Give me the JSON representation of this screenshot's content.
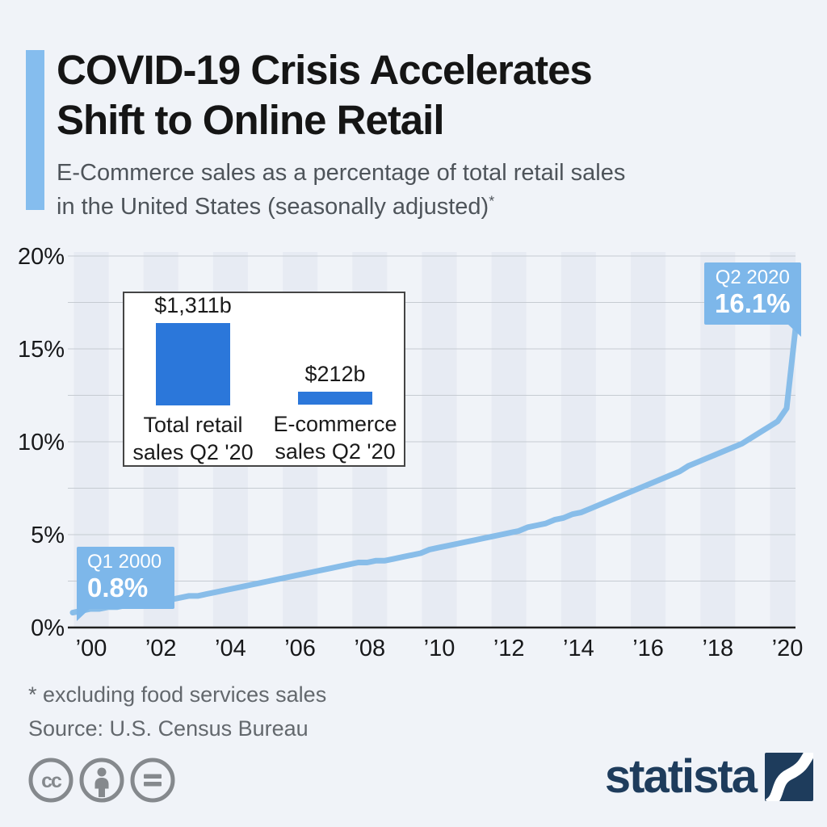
{
  "header": {
    "title_lines": [
      "COVID-19 Crisis Accelerates",
      "Shift to Online Retail"
    ],
    "subtitle_lines": [
      "E-Commerce sales as a percentage of total retail sales",
      "in the United States (seasonally adjusted)"
    ],
    "footnote_marker": "*"
  },
  "chart_data": {
    "type": "line",
    "title": "E-Commerce sales as a percentage of total retail sales in the United States (seasonally adjusted)",
    "x_unit": "quarter",
    "x_start": "Q1 2000",
    "x_end": "Q2 2020",
    "ylim": [
      0,
      20
    ],
    "y_gridline_step": 2.5,
    "grid": true,
    "y_ticks": [
      {
        "value": 0,
        "label": "0%"
      },
      {
        "value": 5,
        "label": "5%"
      },
      {
        "value": 10,
        "label": "10%"
      },
      {
        "value": 15,
        "label": "15%"
      },
      {
        "value": 20,
        "label": "20%"
      }
    ],
    "x_tick_labels": [
      "’00",
      "’02",
      "’04",
      "’06",
      "’08",
      "’10",
      "’12",
      "’14",
      "’16",
      "’18",
      "’20"
    ],
    "series": [
      {
        "name": "E-commerce share of total retail sales (%)",
        "values": [
          0.8,
          0.9,
          1.0,
          1.0,
          1.1,
          1.1,
          1.2,
          1.2,
          1.3,
          1.4,
          1.4,
          1.5,
          1.6,
          1.7,
          1.7,
          1.8,
          1.9,
          2.0,
          2.1,
          2.2,
          2.3,
          2.4,
          2.5,
          2.6,
          2.7,
          2.8,
          2.9,
          3.0,
          3.1,
          3.2,
          3.3,
          3.4,
          3.5,
          3.5,
          3.6,
          3.6,
          3.7,
          3.8,
          3.9,
          4.0,
          4.2,
          4.3,
          4.4,
          4.5,
          4.6,
          4.7,
          4.8,
          4.9,
          5.0,
          5.1,
          5.2,
          5.4,
          5.5,
          5.6,
          5.8,
          5.9,
          6.1,
          6.2,
          6.4,
          6.6,
          6.8,
          7.0,
          7.2,
          7.4,
          7.6,
          7.8,
          8.0,
          8.2,
          8.4,
          8.7,
          8.9,
          9.1,
          9.3,
          9.5,
          9.7,
          9.9,
          10.2,
          10.5,
          10.8,
          11.1,
          11.8,
          16.1
        ]
      }
    ],
    "annotations": [
      {
        "label": "Q1 2000",
        "value_label": "0.8%",
        "value": 0.8
      },
      {
        "label": "Q2 2020",
        "value_label": "16.1%",
        "value": 16.1
      }
    ],
    "inset": {
      "type": "bar",
      "values": [
        1311,
        212
      ],
      "value_labels": [
        "$1,311b",
        "$212b"
      ],
      "category_lines": [
        [
          "Total retail",
          "sales Q2 '20"
        ],
        [
          "E-commerce",
          "sales Q2 '20"
        ]
      ]
    }
  },
  "footer": {
    "footnote": "* excluding food services sales",
    "source": "Source: U.S. Census Bureau",
    "cc_glyph": "cc",
    "license_icons": [
      "cc-icon",
      "attribution-icon",
      "no-derivatives-icon"
    ],
    "brand": "statista"
  },
  "colors": {
    "background": "#f0f3f8",
    "accent_bar": "#85bdee",
    "plot_band": "#e7ebf3",
    "gridline": "#c6cbd2",
    "axis_line": "#1f1f1f",
    "axis_text": "#17181a",
    "line": "#88bde9",
    "callout": "#7db7ea",
    "callout_text": "#ffffff",
    "inset_bar": "#2b77da",
    "inset_border": "#454545",
    "title_text": "#151515",
    "subtitle_text": "#4e545a",
    "footnote_text": "#63686d",
    "icon_gray": "#85898d",
    "brand_navy": "#1e3c5c"
  }
}
